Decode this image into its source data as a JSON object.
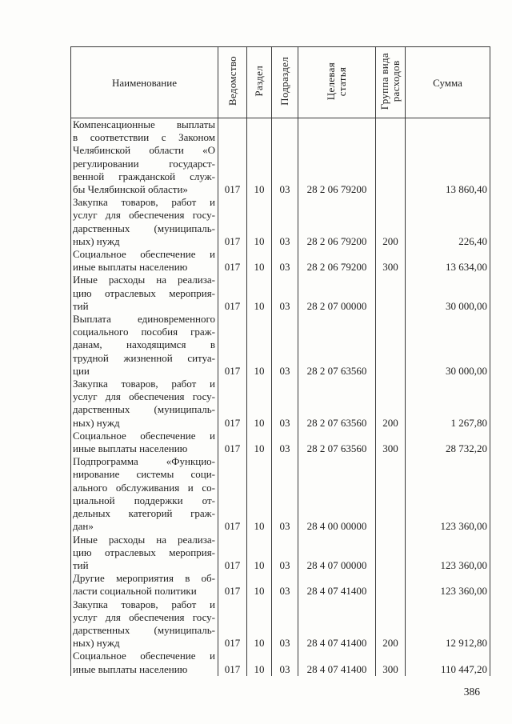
{
  "page": {
    "number": "386"
  },
  "table": {
    "headers": {
      "name": "Наименование",
      "vedomstvo": "Ведомство",
      "razdel": "Раздел",
      "podrazdel": "Подраздел",
      "celevaya": "Целевая\nстатья",
      "gruppa": "Группа вида\nрасходов",
      "summa": "Сумма"
    },
    "rows": [
      {
        "name_lines": [
          "Компенсационные выплаты",
          "в соответствии с Законом",
          "Челябинской области «О",
          "регулировании государст-",
          "венной гражданской служ-",
          "бы Челябинской области»"
        ],
        "vedomstvo": "017",
        "razdel": "10",
        "podrazdel": "03",
        "celevaya": "28 2 06 79200",
        "gruppa": "",
        "summa": "13 860,40"
      },
      {
        "name_lines": [
          "Закупка товаров, работ и",
          "услуг для обеспечения госу-",
          "дарственных (муниципаль-",
          "ных) нужд"
        ],
        "vedomstvo": "017",
        "razdel": "10",
        "podrazdel": "03",
        "celevaya": "28 2 06 79200",
        "gruppa": "200",
        "summa": "226,40"
      },
      {
        "name_lines": [
          "Социальное обеспечение и",
          "иные выплаты населению"
        ],
        "vedomstvo": "017",
        "razdel": "10",
        "podrazdel": "03",
        "celevaya": "28 2 06 79200",
        "gruppa": "300",
        "summa": "13 634,00"
      },
      {
        "name_lines": [
          "Иные расходы на реализа-",
          "цию отраслевых мероприя-",
          "тий"
        ],
        "vedomstvo": "017",
        "razdel": "10",
        "podrazdel": "03",
        "celevaya": "28 2 07 00000",
        "gruppa": "",
        "summa": "30 000,00"
      },
      {
        "name_lines": [
          "Выплата единовременного",
          "социального пособия граж-",
          "данам, находящимся в",
          "трудной жизненной ситуа-",
          "ции"
        ],
        "vedomstvo": "017",
        "razdel": "10",
        "podrazdel": "03",
        "celevaya": "28 2 07 63560",
        "gruppa": "",
        "summa": "30 000,00"
      },
      {
        "name_lines": [
          "Закупка товаров, работ и",
          "услуг для обеспечения госу-",
          "дарственных (муниципаль-",
          "ных) нужд"
        ],
        "vedomstvo": "017",
        "razdel": "10",
        "podrazdel": "03",
        "celevaya": "28 2 07 63560",
        "gruppa": "200",
        "summa": "1 267,80"
      },
      {
        "name_lines": [
          "Социальное обеспечение и",
          "иные выплаты населению"
        ],
        "vedomstvo": "017",
        "razdel": "10",
        "podrazdel": "03",
        "celevaya": "28 2 07 63560",
        "gruppa": "300",
        "summa": "28 732,20"
      },
      {
        "name_lines": [
          "Подпрограмма «Функцио-",
          "нирование системы соци-",
          "ального обслуживания и со-",
          "циальной поддержки от-",
          "дельных категорий граж-",
          "дан»"
        ],
        "vedomstvo": "017",
        "razdel": "10",
        "podrazdel": "03",
        "celevaya": "28 4 00 00000",
        "gruppa": "",
        "summa": "123 360,00"
      },
      {
        "name_lines": [
          "Иные расходы на реализа-",
          "цию отраслевых мероприя-",
          "тий"
        ],
        "vedomstvo": "017",
        "razdel": "10",
        "podrazdel": "03",
        "celevaya": "28 4 07 00000",
        "gruppa": "",
        "summa": "123 360,00"
      },
      {
        "name_lines": [
          "Другие мероприятия в об-",
          "ласти социальной политики"
        ],
        "vedomstvo": "017",
        "razdel": "10",
        "podrazdel": "03",
        "celevaya": "28 4 07 41400",
        "gruppa": "",
        "summa": "123 360,00"
      },
      {
        "name_lines": [
          "Закупка товаров, работ и",
          "услуг для обеспечения госу-",
          "дарственных (муниципаль-",
          "ных) нужд"
        ],
        "vedomstvo": "017",
        "razdel": "10",
        "podrazdel": "03",
        "celevaya": "28 4 07 41400",
        "gruppa": "200",
        "summa": "12 912,80"
      },
      {
        "name_lines": [
          "Социальное обеспечение и",
          "иные выплаты населению"
        ],
        "vedomstvo": "017",
        "razdel": "10",
        "podrazdel": "03",
        "celevaya": "28 4 07 41400",
        "gruppa": "300",
        "summa": "110 447,20"
      }
    ]
  }
}
